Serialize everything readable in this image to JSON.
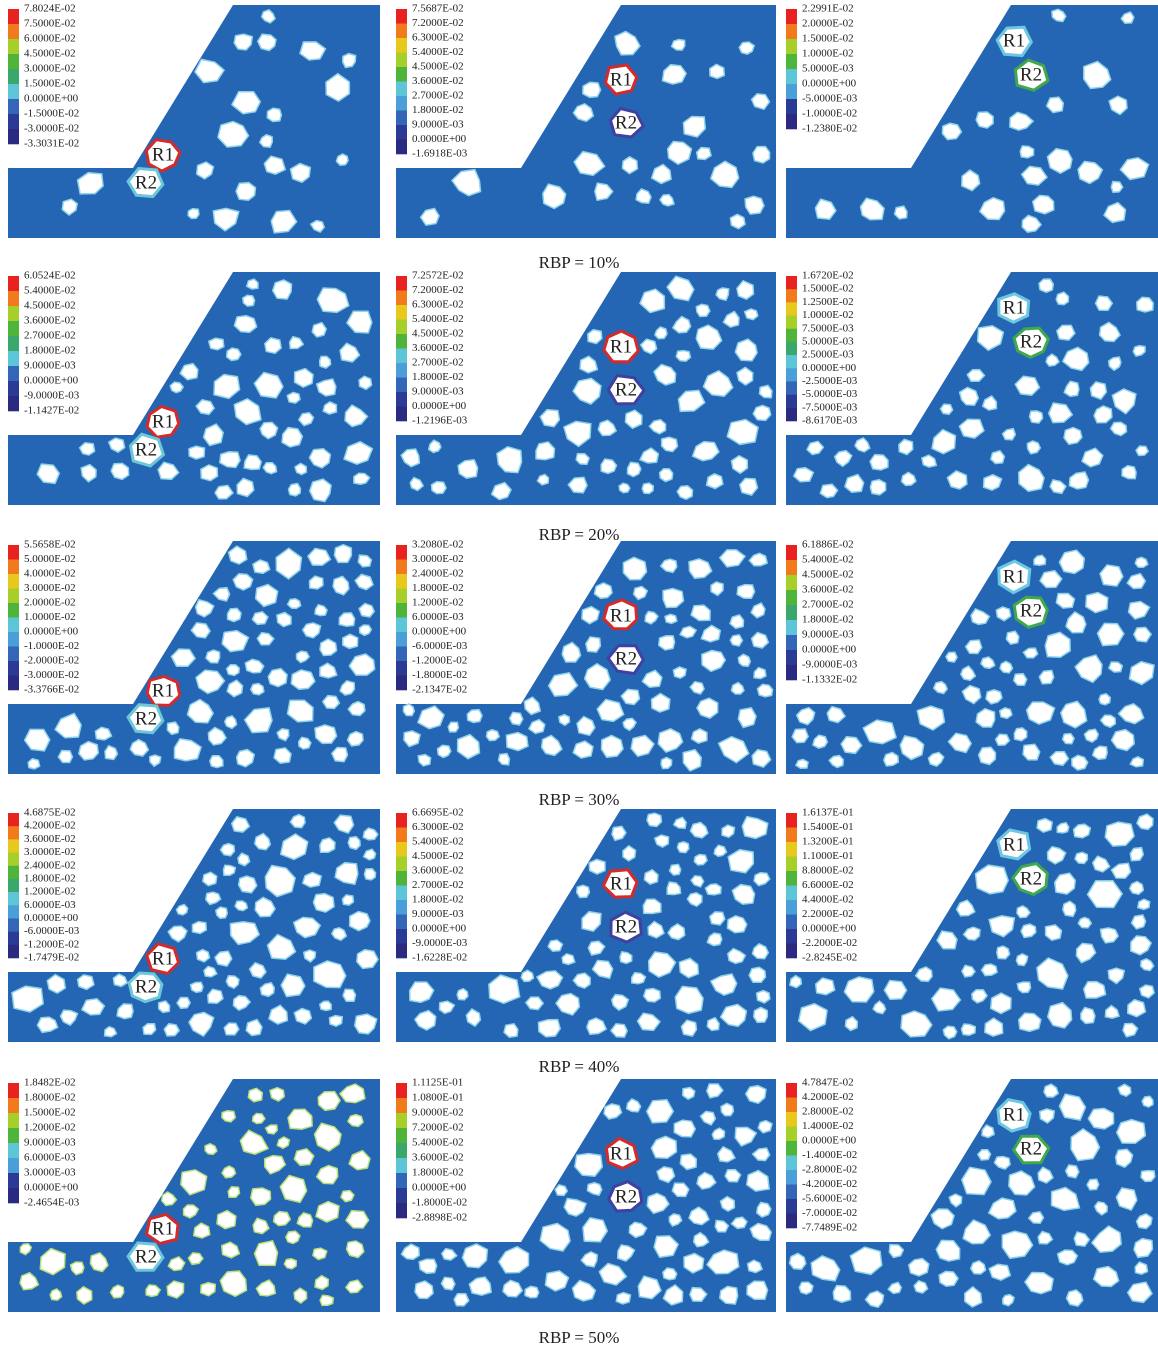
{
  "rows": [
    {
      "caption": "RBP = 10%",
      "panels": [
        {
          "legend": [
            "7.8024E-02",
            "7.5000E-02",
            "6.0000E-02",
            "4.5000E-02",
            "3.0000E-02",
            "1.5000E-02",
            "0.0000E+00",
            "-1.5000E-02",
            "-3.0000E-02",
            "-3.3031E-02"
          ],
          "blocks": [
            "R1",
            "R2"
          ]
        },
        {
          "legend": [
            "7.5687E-02",
            "7.2000E-02",
            "6.3000E-02",
            "5.4000E-02",
            "4.5000E-02",
            "3.6000E-02",
            "2.7000E-02",
            "1.8000E-02",
            "9.0000E-03",
            "0.0000E+00",
            "-1.6918E-03"
          ],
          "blocks": [
            "R1",
            "R2"
          ]
        },
        {
          "legend": [
            "2.2991E-02",
            "2.0000E-02",
            "1.5000E-02",
            "1.0000E-02",
            "5.0000E-03",
            "0.0000E+00",
            "-5.0000E-03",
            "-1.0000E-02",
            "-1.2380E-02"
          ],
          "blocks": [
            "R1",
            "R2"
          ]
        }
      ]
    },
    {
      "caption": "RBP = 20%",
      "panels": [
        {
          "legend": [
            "6.0524E-02",
            "5.4000E-02",
            "4.5000E-02",
            "3.6000E-02",
            "2.7000E-02",
            "1.8000E-02",
            "9.0000E-03",
            "0.0000E+00",
            "-9.0000E-03",
            "-1.1427E-02"
          ],
          "blocks": [
            "R1",
            "R2"
          ]
        },
        {
          "legend": [
            "7.2572E-02",
            "7.2000E-02",
            "6.3000E-02",
            "5.4000E-02",
            "4.5000E-02",
            "3.6000E-02",
            "2.7000E-02",
            "1.8000E-02",
            "9.0000E-03",
            "0.0000E+00",
            "-1.2196E-03"
          ],
          "blocks": [
            "R1",
            "R2"
          ]
        },
        {
          "legend": [
            "1.6720E-02",
            "1.5000E-02",
            "1.2500E-02",
            "1.0000E-02",
            "7.5000E-03",
            "5.0000E-03",
            "2.5000E-03",
            "0.0000E+00",
            "-2.5000E-03",
            "-5.0000E-03",
            "-7.5000E-03",
            "-8.6170E-03"
          ],
          "blocks": [
            "R1",
            "R2"
          ]
        }
      ]
    },
    {
      "caption": "RBP = 30%",
      "panels": [
        {
          "legend": [
            "5.5658E-02",
            "5.0000E-02",
            "4.0000E-02",
            "3.0000E-02",
            "2.0000E-02",
            "1.0000E-02",
            "0.0000E+00",
            "-1.0000E-02",
            "-2.0000E-02",
            "-3.0000E-02",
            "-3.3766E-02"
          ],
          "blocks": [
            "R1",
            "R2"
          ]
        },
        {
          "legend": [
            "3.2080E-02",
            "3.0000E-02",
            "2.4000E-02",
            "1.8000E-02",
            "1.2000E-02",
            "6.0000E-03",
            "0.0000E+00",
            "-6.0000E-03",
            "-1.2000E-02",
            "-1.8000E-02",
            "-2.1347E-02"
          ],
          "blocks": [
            "R1",
            "R2"
          ]
        },
        {
          "legend": [
            "6.1886E-02",
            "5.4000E-02",
            "4.5000E-02",
            "3.6000E-02",
            "2.7000E-02",
            "1.8000E-02",
            "9.0000E-03",
            "0.0000E+00",
            "-9.0000E-03",
            "-1.1332E-02"
          ],
          "blocks": [
            "R1",
            "R2"
          ]
        }
      ]
    },
    {
      "caption": "RBP = 40%",
      "panels": [
        {
          "legend": [
            "4.6875E-02",
            "4.2000E-02",
            "3.6000E-02",
            "3.0000E-02",
            "2.4000E-02",
            "1.8000E-02",
            "1.2000E-02",
            "6.0000E-03",
            "0.0000E+00",
            "-6.0000E-03",
            "-1.2000E-02",
            "-1.7479E-02"
          ],
          "blocks": [
            "R1",
            "R2"
          ]
        },
        {
          "legend": [
            "6.6695E-02",
            "6.3000E-02",
            "5.4000E-02",
            "4.5000E-02",
            "3.6000E-02",
            "2.7000E-02",
            "1.8000E-02",
            "9.0000E-03",
            "0.0000E+00",
            "-9.0000E-03",
            "-1.6228E-02"
          ],
          "blocks": [
            "R1",
            "R2"
          ]
        },
        {
          "legend": [
            "1.6137E-01",
            "1.5400E-01",
            "1.3200E-01",
            "1.1000E-01",
            "8.8000E-02",
            "6.6000E-02",
            "4.4000E-02",
            "2.2000E-02",
            "0.0000E+00",
            "-2.2000E-02",
            "-2.8245E-02"
          ],
          "blocks": [
            "R1",
            "R2"
          ]
        }
      ]
    },
    {
      "caption": "RBP = 50%",
      "panels": [
        {
          "legend": [
            "1.8482E-02",
            "1.8000E-02",
            "1.5000E-02",
            "1.2000E-02",
            "9.0000E-03",
            "6.0000E-03",
            "3.0000E-03",
            "0.0000E+00",
            "-2.4654E-03"
          ],
          "blocks": [
            "R1",
            "R2"
          ]
        },
        {
          "legend": [
            "1.1125E-01",
            "1.0800E-01",
            "9.0000E-02",
            "7.2000E-02",
            "5.4000E-02",
            "3.6000E-02",
            "1.8000E-02",
            "0.0000E+00",
            "-1.8000E-02",
            "-2.8898E-02"
          ],
          "blocks": [
            "R1",
            "R2"
          ]
        },
        {
          "legend": [
            "4.7847E-02",
            "4.2000E-02",
            "2.8000E-02",
            "1.4000E-02",
            "0.0000E+00",
            "-1.4000E-02",
            "-2.8000E-02",
            "-4.2000E-02",
            "-5.6000E-02",
            "-7.0000E-02",
            "-7.7489E-02"
          ],
          "blocks": [
            "R1",
            "R2"
          ]
        }
      ]
    }
  ]
}
